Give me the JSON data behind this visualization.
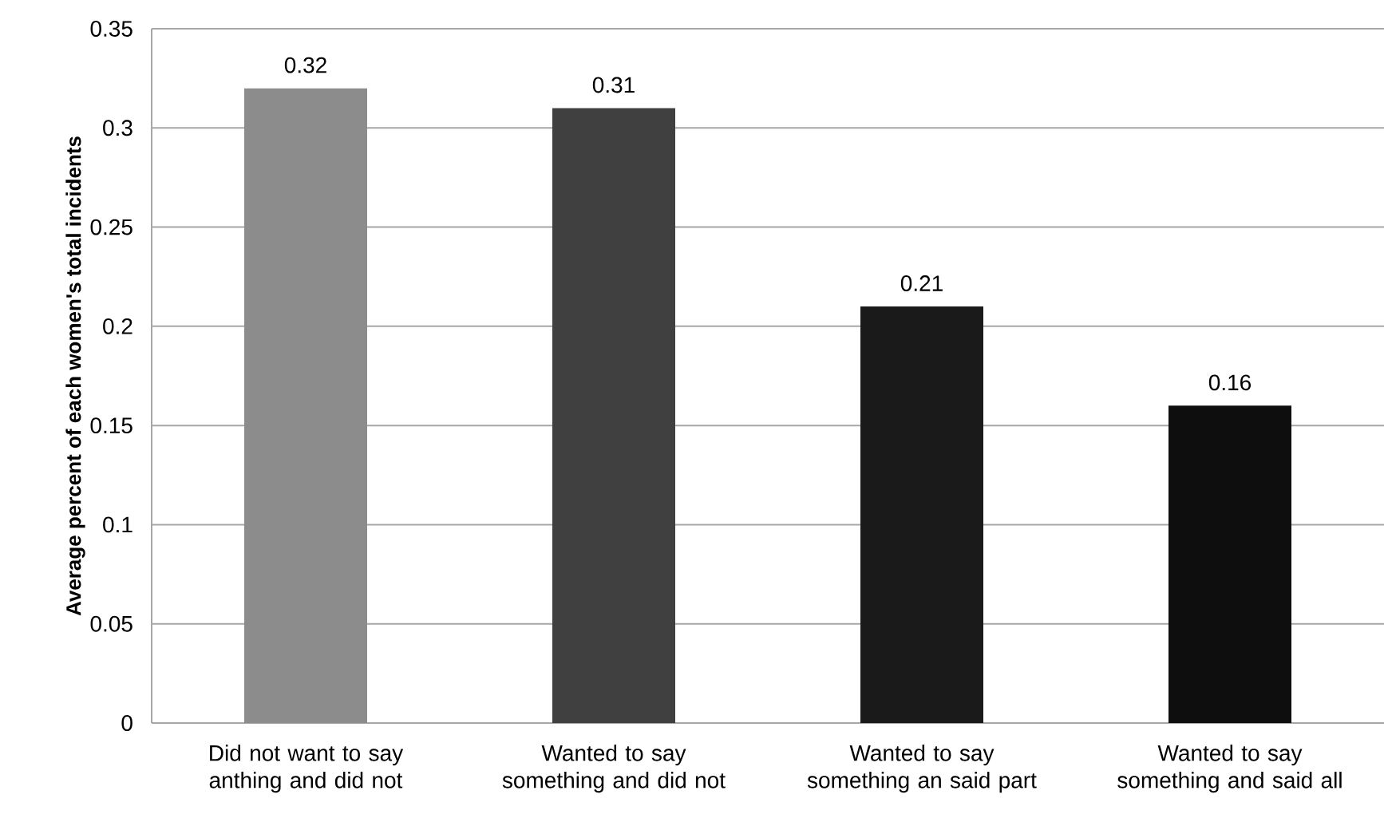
{
  "chart_data": {
    "type": "bar",
    "ylabel": "Average percent of each women's total incidents",
    "categories": [
      "Did not want to say anthing and did not",
      "Wanted to say something and did not",
      "Wanted to say something an said part",
      "Wanted to say something and said all"
    ],
    "values": [
      0.32,
      0.31,
      0.21,
      0.16
    ],
    "colors": [
      "#8c8c8c",
      "#404040",
      "#1a1a1a",
      "#0e0e0e"
    ],
    "ylim": [
      0,
      0.35
    ],
    "yticks": [
      0,
      0.05,
      0.1,
      0.15,
      0.2,
      0.25,
      0.3,
      0.35
    ],
    "grid": "y",
    "data_labels": true
  }
}
